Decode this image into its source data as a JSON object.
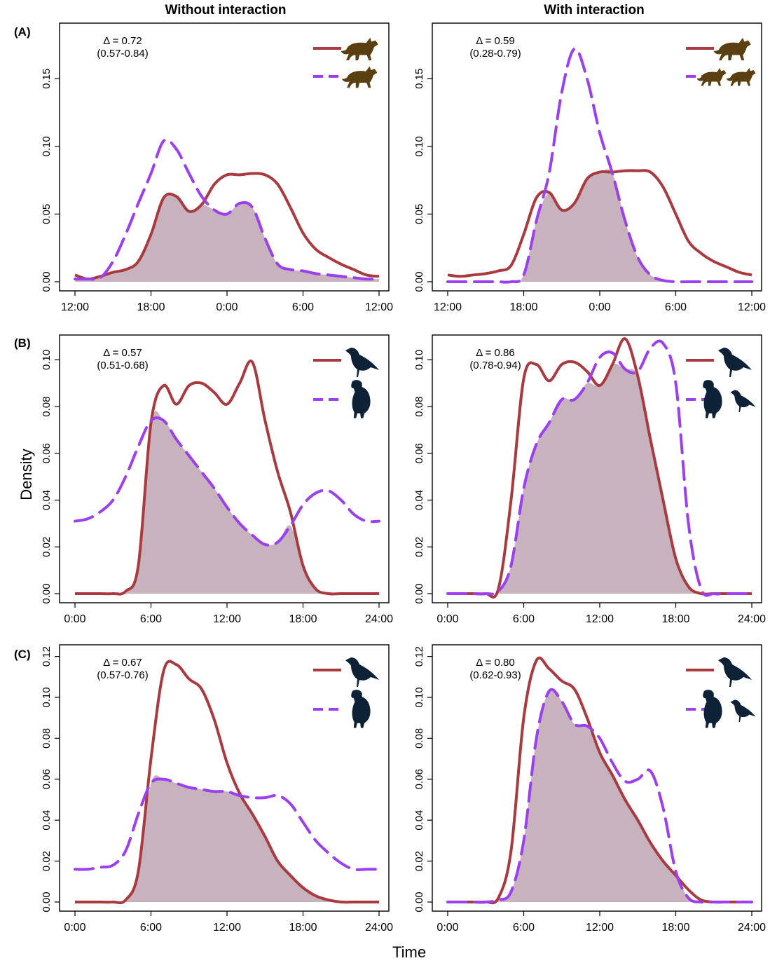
{
  "figure": {
    "column_titles": [
      "Without interaction",
      "With interaction"
    ],
    "row_tags": [
      "(A)",
      "(B)",
      "(C)"
    ],
    "xlabel": "Time",
    "ylabel": "Density"
  },
  "colors": {
    "solid": "#a93a3f",
    "dashed": "#9b3ff0",
    "overlap_fill": "#c7b2bd",
    "silhouette_A": "#5a3f10",
    "silhouette_BC": "#0d2137"
  },
  "chart_data": [
    {
      "panel": "A-left",
      "type": "area",
      "delta": "Δ = 0.72",
      "ci": "(0.57-0.84)",
      "x_ticks": [
        "12:00",
        "18:00",
        "0:00",
        "6:00",
        "12:00"
      ],
      "y_ticks": [
        "0.00",
        "0.05",
        "0.10",
        "0.15"
      ],
      "ylim": [
        0,
        0.19
      ],
      "xlim": [
        0,
        24
      ],
      "legend": {
        "solid_icons": [
          "wolf-icon"
        ],
        "dashed_icons": [
          "fox-icon"
        ]
      },
      "x": [
        0,
        1,
        2,
        3,
        4,
        5,
        6,
        7,
        8,
        9,
        10,
        11,
        12,
        13,
        14,
        15,
        16,
        17,
        18,
        19,
        20,
        21,
        22,
        23,
        24
      ],
      "series": [
        {
          "style": "solid",
          "values": [
            0.005,
            0.002,
            0.004,
            0.007,
            0.009,
            0.015,
            0.035,
            0.062,
            0.063,
            0.052,
            0.057,
            0.072,
            0.079,
            0.079,
            0.08,
            0.079,
            0.072,
            0.055,
            0.036,
            0.024,
            0.018,
            0.013,
            0.009,
            0.005,
            0.004
          ]
        },
        {
          "style": "dashed",
          "values": [
            0.002,
            0.002,
            0.003,
            0.015,
            0.035,
            0.058,
            0.08,
            0.104,
            0.098,
            0.08,
            0.063,
            0.053,
            0.05,
            0.058,
            0.055,
            0.032,
            0.013,
            0.009,
            0.008,
            0.006,
            0.005,
            0.004,
            0.003,
            0.002,
            0.002
          ]
        }
      ]
    },
    {
      "panel": "A-right",
      "type": "area",
      "delta": "Δ = 0.59",
      "ci": "(0.28-0.79)",
      "x_ticks": [
        "12:00",
        "18:00",
        "0:00",
        "6:00",
        "12:00"
      ],
      "y_ticks": [
        "0.00",
        "0.05",
        "0.10",
        "0.15"
      ],
      "ylim": [
        0,
        0.19
      ],
      "xlim": [
        0,
        24
      ],
      "legend": {
        "solid_icons": [
          "wolf-icon"
        ],
        "dashed_icons": [
          "wolf-icon",
          "wolf-icon"
        ]
      },
      "x": [
        0,
        1,
        2,
        3,
        4,
        5,
        6,
        7,
        8,
        9,
        10,
        11,
        12,
        13,
        14,
        15,
        16,
        17,
        18,
        19,
        20,
        21,
        22,
        23,
        24
      ],
      "series": [
        {
          "style": "solid",
          "values": [
            0.005,
            0.004,
            0.005,
            0.006,
            0.008,
            0.012,
            0.035,
            0.062,
            0.066,
            0.053,
            0.058,
            0.076,
            0.081,
            0.081,
            0.082,
            0.082,
            0.081,
            0.07,
            0.05,
            0.03,
            0.021,
            0.015,
            0.011,
            0.007,
            0.005
          ]
        },
        {
          "style": "dashed",
          "values": [
            0.0,
            0.0,
            0.0,
            0.0,
            0.0,
            0.0,
            0.005,
            0.045,
            0.08,
            0.14,
            0.172,
            0.15,
            0.11,
            0.08,
            0.045,
            0.018,
            0.005,
            0.001,
            0.0,
            0.0,
            0.0,
            0.0,
            0.0,
            0.0,
            0.0
          ]
        }
      ]
    },
    {
      "panel": "B-left",
      "type": "area",
      "delta": "Δ = 0.57",
      "ci": "(0.51-0.68)",
      "x_ticks": [
        "0:00",
        "6:00",
        "12:00",
        "18:00",
        "24:00"
      ],
      "y_ticks": [
        "0.00",
        "0.02",
        "0.04",
        "0.06",
        "0.08",
        "0.10"
      ],
      "ylim": [
        0,
        0.11
      ],
      "xlim": [
        0,
        24
      ],
      "legend": {
        "solid_icons": [
          "raven-icon"
        ],
        "dashed_icons": [
          "vulture-icon"
        ]
      },
      "x": [
        0,
        1,
        2,
        3,
        4,
        5,
        6,
        7,
        8,
        9,
        10,
        11,
        12,
        13,
        14,
        15,
        16,
        17,
        18,
        19,
        20,
        21,
        22,
        23,
        24
      ],
      "series": [
        {
          "style": "solid",
          "values": [
            0.0,
            0.0,
            0.0,
            0.0,
            0.001,
            0.012,
            0.073,
            0.089,
            0.081,
            0.089,
            0.09,
            0.086,
            0.081,
            0.09,
            0.099,
            0.074,
            0.052,
            0.035,
            0.012,
            0.002,
            0.0,
            0.0,
            0.0,
            0.0,
            0.0
          ]
        },
        {
          "style": "dashed",
          "values": [
            0.031,
            0.032,
            0.035,
            0.04,
            0.05,
            0.063,
            0.074,
            0.074,
            0.066,
            0.059,
            0.052,
            0.045,
            0.037,
            0.03,
            0.025,
            0.021,
            0.022,
            0.029,
            0.038,
            0.043,
            0.044,
            0.04,
            0.034,
            0.031,
            0.031
          ]
        }
      ]
    },
    {
      "panel": "B-right",
      "type": "area",
      "delta": "Δ = 0.86",
      "ci": "(0.78-0.94)",
      "x_ticks": [
        "0:00",
        "6:00",
        "12:00",
        "18:00",
        "24:00"
      ],
      "y_ticks": [
        "0.00",
        "0.02",
        "0.04",
        "0.06",
        "0.08",
        "0.10"
      ],
      "ylim": [
        0,
        0.11
      ],
      "xlim": [
        0,
        24
      ],
      "legend": {
        "solid_icons": [
          "raven-icon"
        ],
        "dashed_icons": [
          "vulture-icon",
          "raven-icon"
        ]
      },
      "x": [
        0,
        1,
        2,
        3,
        4,
        5,
        6,
        7,
        8,
        9,
        10,
        11,
        12,
        13,
        14,
        15,
        16,
        17,
        18,
        19,
        20,
        21,
        22,
        23,
        24
      ],
      "series": [
        {
          "style": "solid",
          "values": [
            0.0,
            0.0,
            0.0,
            0.0,
            0.002,
            0.04,
            0.092,
            0.098,
            0.091,
            0.098,
            0.099,
            0.095,
            0.089,
            0.098,
            0.109,
            0.093,
            0.066,
            0.04,
            0.015,
            0.003,
            0.0,
            0.0,
            0.0,
            0.0,
            0.0
          ]
        },
        {
          "style": "dashed",
          "values": [
            0.0,
            0.0,
            0.0,
            0.0,
            0.001,
            0.012,
            0.045,
            0.064,
            0.073,
            0.083,
            0.083,
            0.09,
            0.101,
            0.103,
            0.096,
            0.095,
            0.105,
            0.107,
            0.09,
            0.03,
            0.002,
            0.0,
            0.0,
            0.0,
            0.0
          ]
        }
      ]
    },
    {
      "panel": "C-left",
      "type": "area",
      "delta": "Δ = 0.67",
      "ci": "(0.57-0.76)",
      "x_ticks": [
        "0:00",
        "6:00",
        "12:00",
        "18:00",
        "24:00"
      ],
      "y_ticks": [
        "0.00",
        "0.02",
        "0.04",
        "0.06",
        "0.08",
        "0.10",
        "0.12"
      ],
      "ylim": [
        0,
        0.125
      ],
      "xlim": [
        0,
        24
      ],
      "legend": {
        "solid_icons": [
          "raven-icon"
        ],
        "dashed_icons": [
          "vulture-icon"
        ]
      },
      "x": [
        0,
        1,
        2,
        3,
        4,
        5,
        6,
        7,
        8,
        9,
        10,
        11,
        12,
        13,
        14,
        15,
        16,
        17,
        18,
        19,
        20,
        21,
        22,
        23,
        24
      ],
      "series": [
        {
          "style": "solid",
          "values": [
            0.0,
            0.0,
            0.0,
            0.0,
            0.001,
            0.015,
            0.07,
            0.113,
            0.116,
            0.109,
            0.104,
            0.089,
            0.068,
            0.053,
            0.043,
            0.032,
            0.02,
            0.013,
            0.007,
            0.003,
            0.001,
            0.0,
            0.0,
            0.0,
            0.0
          ]
        },
        {
          "style": "dashed",
          "values": [
            0.016,
            0.016,
            0.017,
            0.018,
            0.025,
            0.043,
            0.058,
            0.06,
            0.058,
            0.056,
            0.055,
            0.054,
            0.054,
            0.052,
            0.051,
            0.051,
            0.052,
            0.048,
            0.039,
            0.03,
            0.024,
            0.019,
            0.016,
            0.016,
            0.016
          ]
        }
      ]
    },
    {
      "panel": "C-right",
      "type": "area",
      "delta": "Δ = 0.80",
      "ci": "(0.62-0.93)",
      "x_ticks": [
        "0:00",
        "6:00",
        "12:00",
        "18:00",
        "24:00"
      ],
      "y_ticks": [
        "0.00",
        "0.02",
        "0.04",
        "0.06",
        "0.08",
        "0.10",
        "0.12"
      ],
      "ylim": [
        0,
        0.125
      ],
      "xlim": [
        0,
        24
      ],
      "legend": {
        "solid_icons": [
          "raven-icon"
        ],
        "dashed_icons": [
          "vulture-icon",
          "raven-icon"
        ]
      },
      "x": [
        0,
        1,
        2,
        3,
        4,
        5,
        6,
        7,
        8,
        9,
        10,
        11,
        12,
        13,
        14,
        15,
        16,
        17,
        18,
        19,
        20,
        21,
        22,
        23,
        24
      ],
      "series": [
        {
          "style": "solid",
          "values": [
            0.0,
            0.0,
            0.0,
            0.0,
            0.002,
            0.025,
            0.09,
            0.118,
            0.114,
            0.108,
            0.104,
            0.09,
            0.073,
            0.062,
            0.05,
            0.04,
            0.029,
            0.02,
            0.013,
            0.006,
            0.001,
            0.0,
            0.0,
            0.0,
            0.0
          ]
        },
        {
          "style": "dashed",
          "values": [
            0.0,
            0.0,
            0.0,
            0.0,
            0.001,
            0.005,
            0.03,
            0.08,
            0.103,
            0.098,
            0.087,
            0.086,
            0.08,
            0.068,
            0.059,
            0.06,
            0.064,
            0.046,
            0.015,
            0.002,
            0.0,
            0.0,
            0.0,
            0.0,
            0.0
          ]
        }
      ]
    }
  ]
}
